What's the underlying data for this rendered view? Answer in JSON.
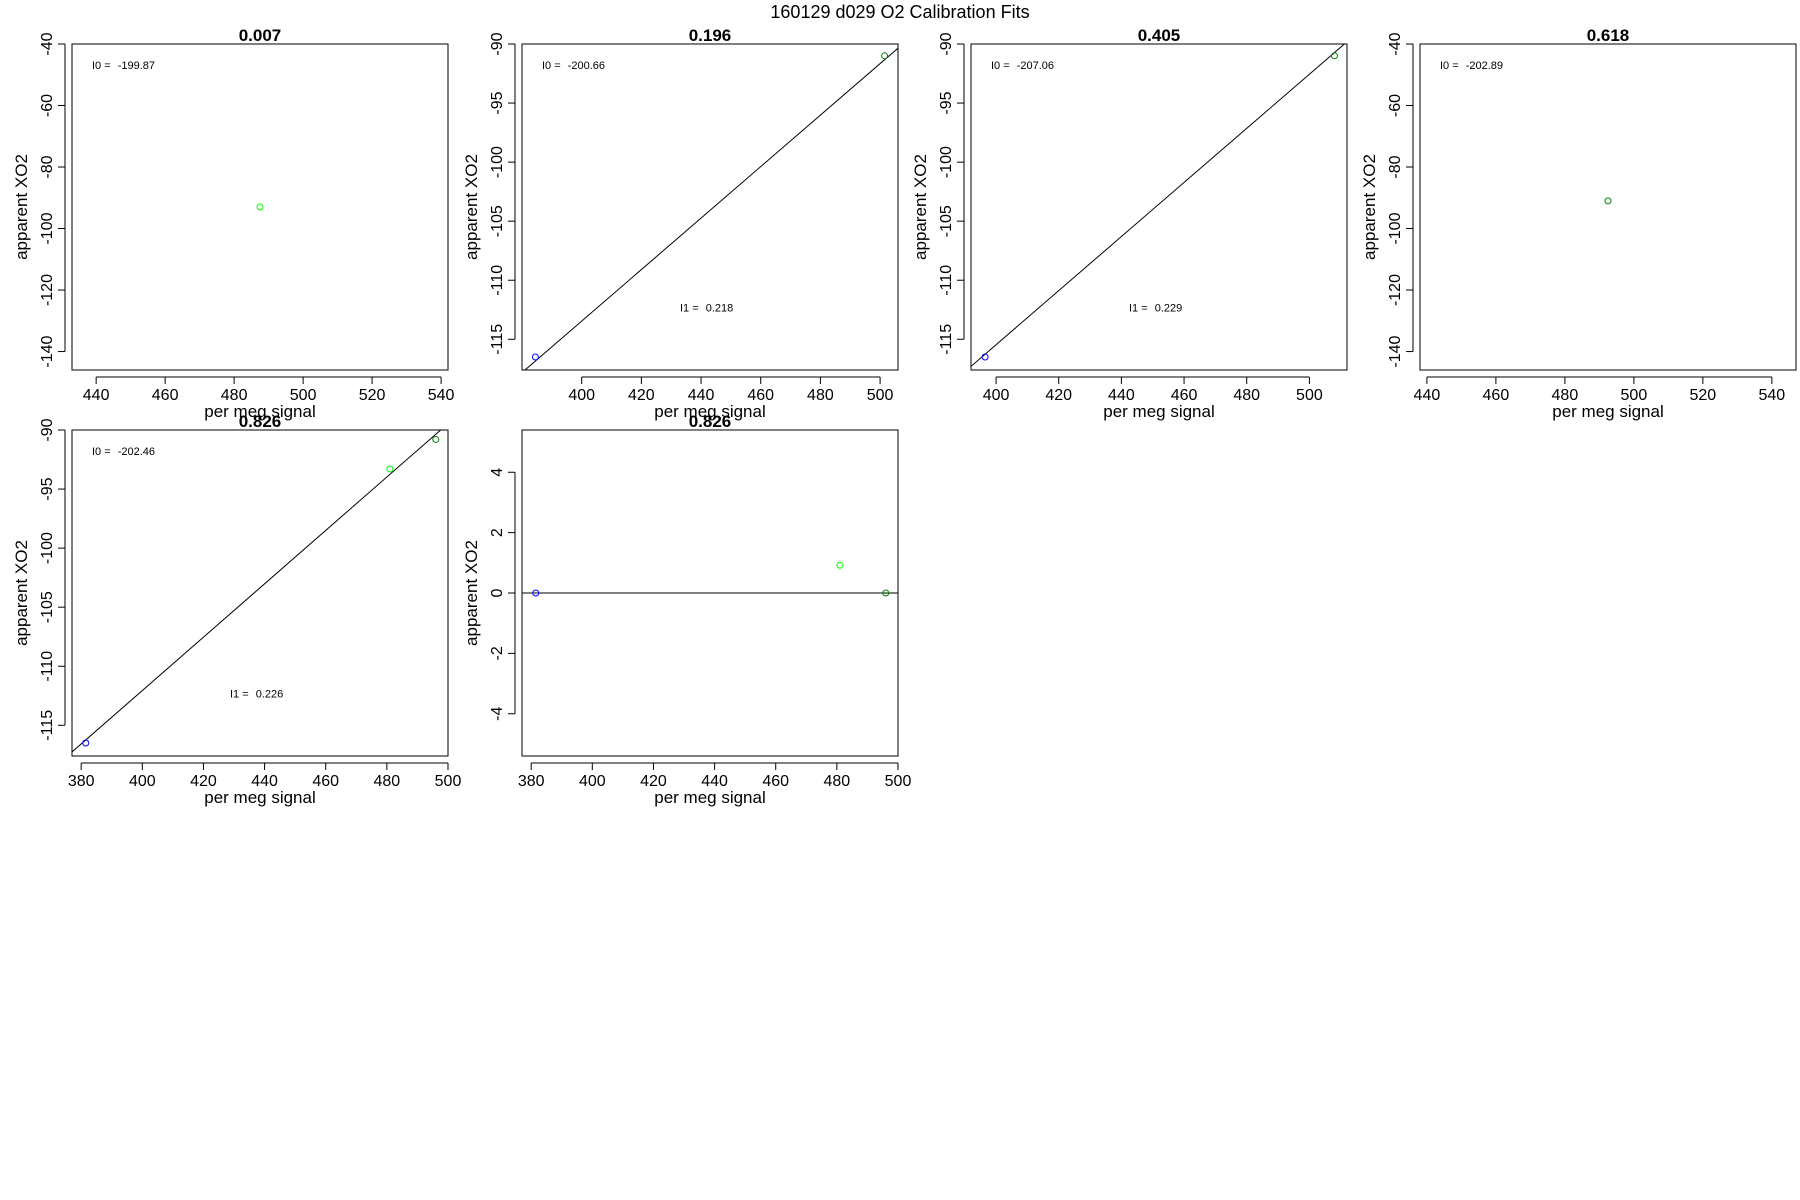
{
  "figure": {
    "title": "160129   d029   O2 Calibration Fits",
    "colors": {
      "blue": "#0000ff",
      "green": "#00ff00",
      "darkgreen": "#008000",
      "line": "#000000"
    }
  },
  "chart_data": [
    {
      "type": "scatter",
      "title": "0.007",
      "xlabel": "per meg signal",
      "ylabel": "apparent XO2",
      "xlim": [
        433,
        542
      ],
      "ylim": [
        -146,
        -40
      ],
      "xticks": [
        440,
        460,
        480,
        500,
        520,
        540
      ],
      "yticks": [
        -40,
        -60,
        -80,
        -100,
        -120,
        -140
      ],
      "points": [
        {
          "x": 487.5,
          "y": -93,
          "color": "green"
        }
      ],
      "fit_line": null,
      "annotations": [
        {
          "label": "I0 = ",
          "value": "-199.87",
          "pos": "top-left"
        }
      ]
    },
    {
      "type": "scatter",
      "title": "0.196",
      "xlabel": "per meg signal",
      "ylabel": "apparent XO2",
      "xlim": [
        380,
        506
      ],
      "ylim": [
        -117.6,
        -90
      ],
      "xticks": [
        400,
        420,
        440,
        460,
        480,
        500
      ],
      "yticks": [
        -90,
        -95,
        -100,
        -105,
        -110,
        -115
      ],
      "points": [
        {
          "x": 384.5,
          "y": -116.5,
          "color": "blue"
        },
        {
          "x": 501.5,
          "y": -91,
          "color": "darkgreen"
        }
      ],
      "fit_line": {
        "slope": 0.218,
        "intercept": -200.66
      },
      "annotations": [
        {
          "label": "I0 = ",
          "value": "-200.66",
          "pos": "top-left"
        },
        {
          "label": "I1 = ",
          "value": "0.218",
          "pos": "center"
        }
      ]
    },
    {
      "type": "scatter",
      "title": "0.405",
      "xlabel": "per meg signal",
      "ylabel": "apparent XO2",
      "xlim": [
        392,
        512
      ],
      "ylim": [
        -117.6,
        -90
      ],
      "xticks": [
        400,
        420,
        440,
        460,
        480,
        500
      ],
      "yticks": [
        -90,
        -95,
        -100,
        -105,
        -110,
        -115
      ],
      "points": [
        {
          "x": 396.5,
          "y": -116.5,
          "color": "blue"
        },
        {
          "x": 508,
          "y": -91,
          "color": "darkgreen"
        }
      ],
      "fit_line": {
        "slope": 0.229,
        "intercept": -207.06
      },
      "annotations": [
        {
          "label": "I0 = ",
          "value": "-207.06",
          "pos": "top-left"
        },
        {
          "label": "I1 = ",
          "value": "0.229",
          "pos": "center"
        }
      ]
    },
    {
      "type": "scatter",
      "title": "0.618",
      "xlabel": "per meg signal",
      "ylabel": "apparent XO2",
      "xlim": [
        438,
        547
      ],
      "ylim": [
        -146,
        -40
      ],
      "xticks": [
        440,
        460,
        480,
        500,
        520,
        540
      ],
      "yticks": [
        -40,
        -60,
        -80,
        -100,
        -120,
        -140
      ],
      "points": [
        {
          "x": 492.5,
          "y": -91,
          "color": "darkgreen"
        }
      ],
      "fit_line": null,
      "annotations": [
        {
          "label": "I0 = ",
          "value": "-202.89",
          "pos": "top-left"
        }
      ]
    },
    {
      "type": "scatter",
      "title": "0.826",
      "xlabel": "per meg signal",
      "ylabel": "apparent XO2",
      "xlim": [
        377,
        500
      ],
      "ylim": [
        -117.6,
        -90
      ],
      "xticks": [
        380,
        400,
        420,
        440,
        460,
        480,
        500
      ],
      "yticks": [
        -90,
        -95,
        -100,
        -105,
        -110,
        -115
      ],
      "points": [
        {
          "x": 381.5,
          "y": -116.5,
          "color": "blue"
        },
        {
          "x": 481,
          "y": -93.3,
          "color": "green"
        },
        {
          "x": 496,
          "y": -90.8,
          "color": "darkgreen"
        }
      ],
      "fit_line": {
        "slope": 0.226,
        "intercept": -202.46
      },
      "annotations": [
        {
          "label": "I0 = ",
          "value": "-202.46",
          "pos": "top-left"
        },
        {
          "label": "I1 = ",
          "value": "0.226",
          "pos": "center"
        }
      ]
    },
    {
      "type": "scatter",
      "title": "0.826",
      "xlabel": "per meg signal",
      "ylabel": "apparent XO2",
      "xlim": [
        377,
        500
      ],
      "ylim": [
        -5.4,
        5.4
      ],
      "xticks": [
        380,
        400,
        420,
        440,
        460,
        480,
        500
      ],
      "yticks": [
        4,
        2,
        0,
        -2,
        -4
      ],
      "points": [
        {
          "x": 381.5,
          "y": 0,
          "color": "blue"
        },
        {
          "x": 481,
          "y": 0.92,
          "color": "green"
        },
        {
          "x": 496,
          "y": 0,
          "color": "darkgreen"
        }
      ],
      "fit_line": {
        "slope": 0,
        "intercept": 0
      },
      "annotations": []
    }
  ]
}
